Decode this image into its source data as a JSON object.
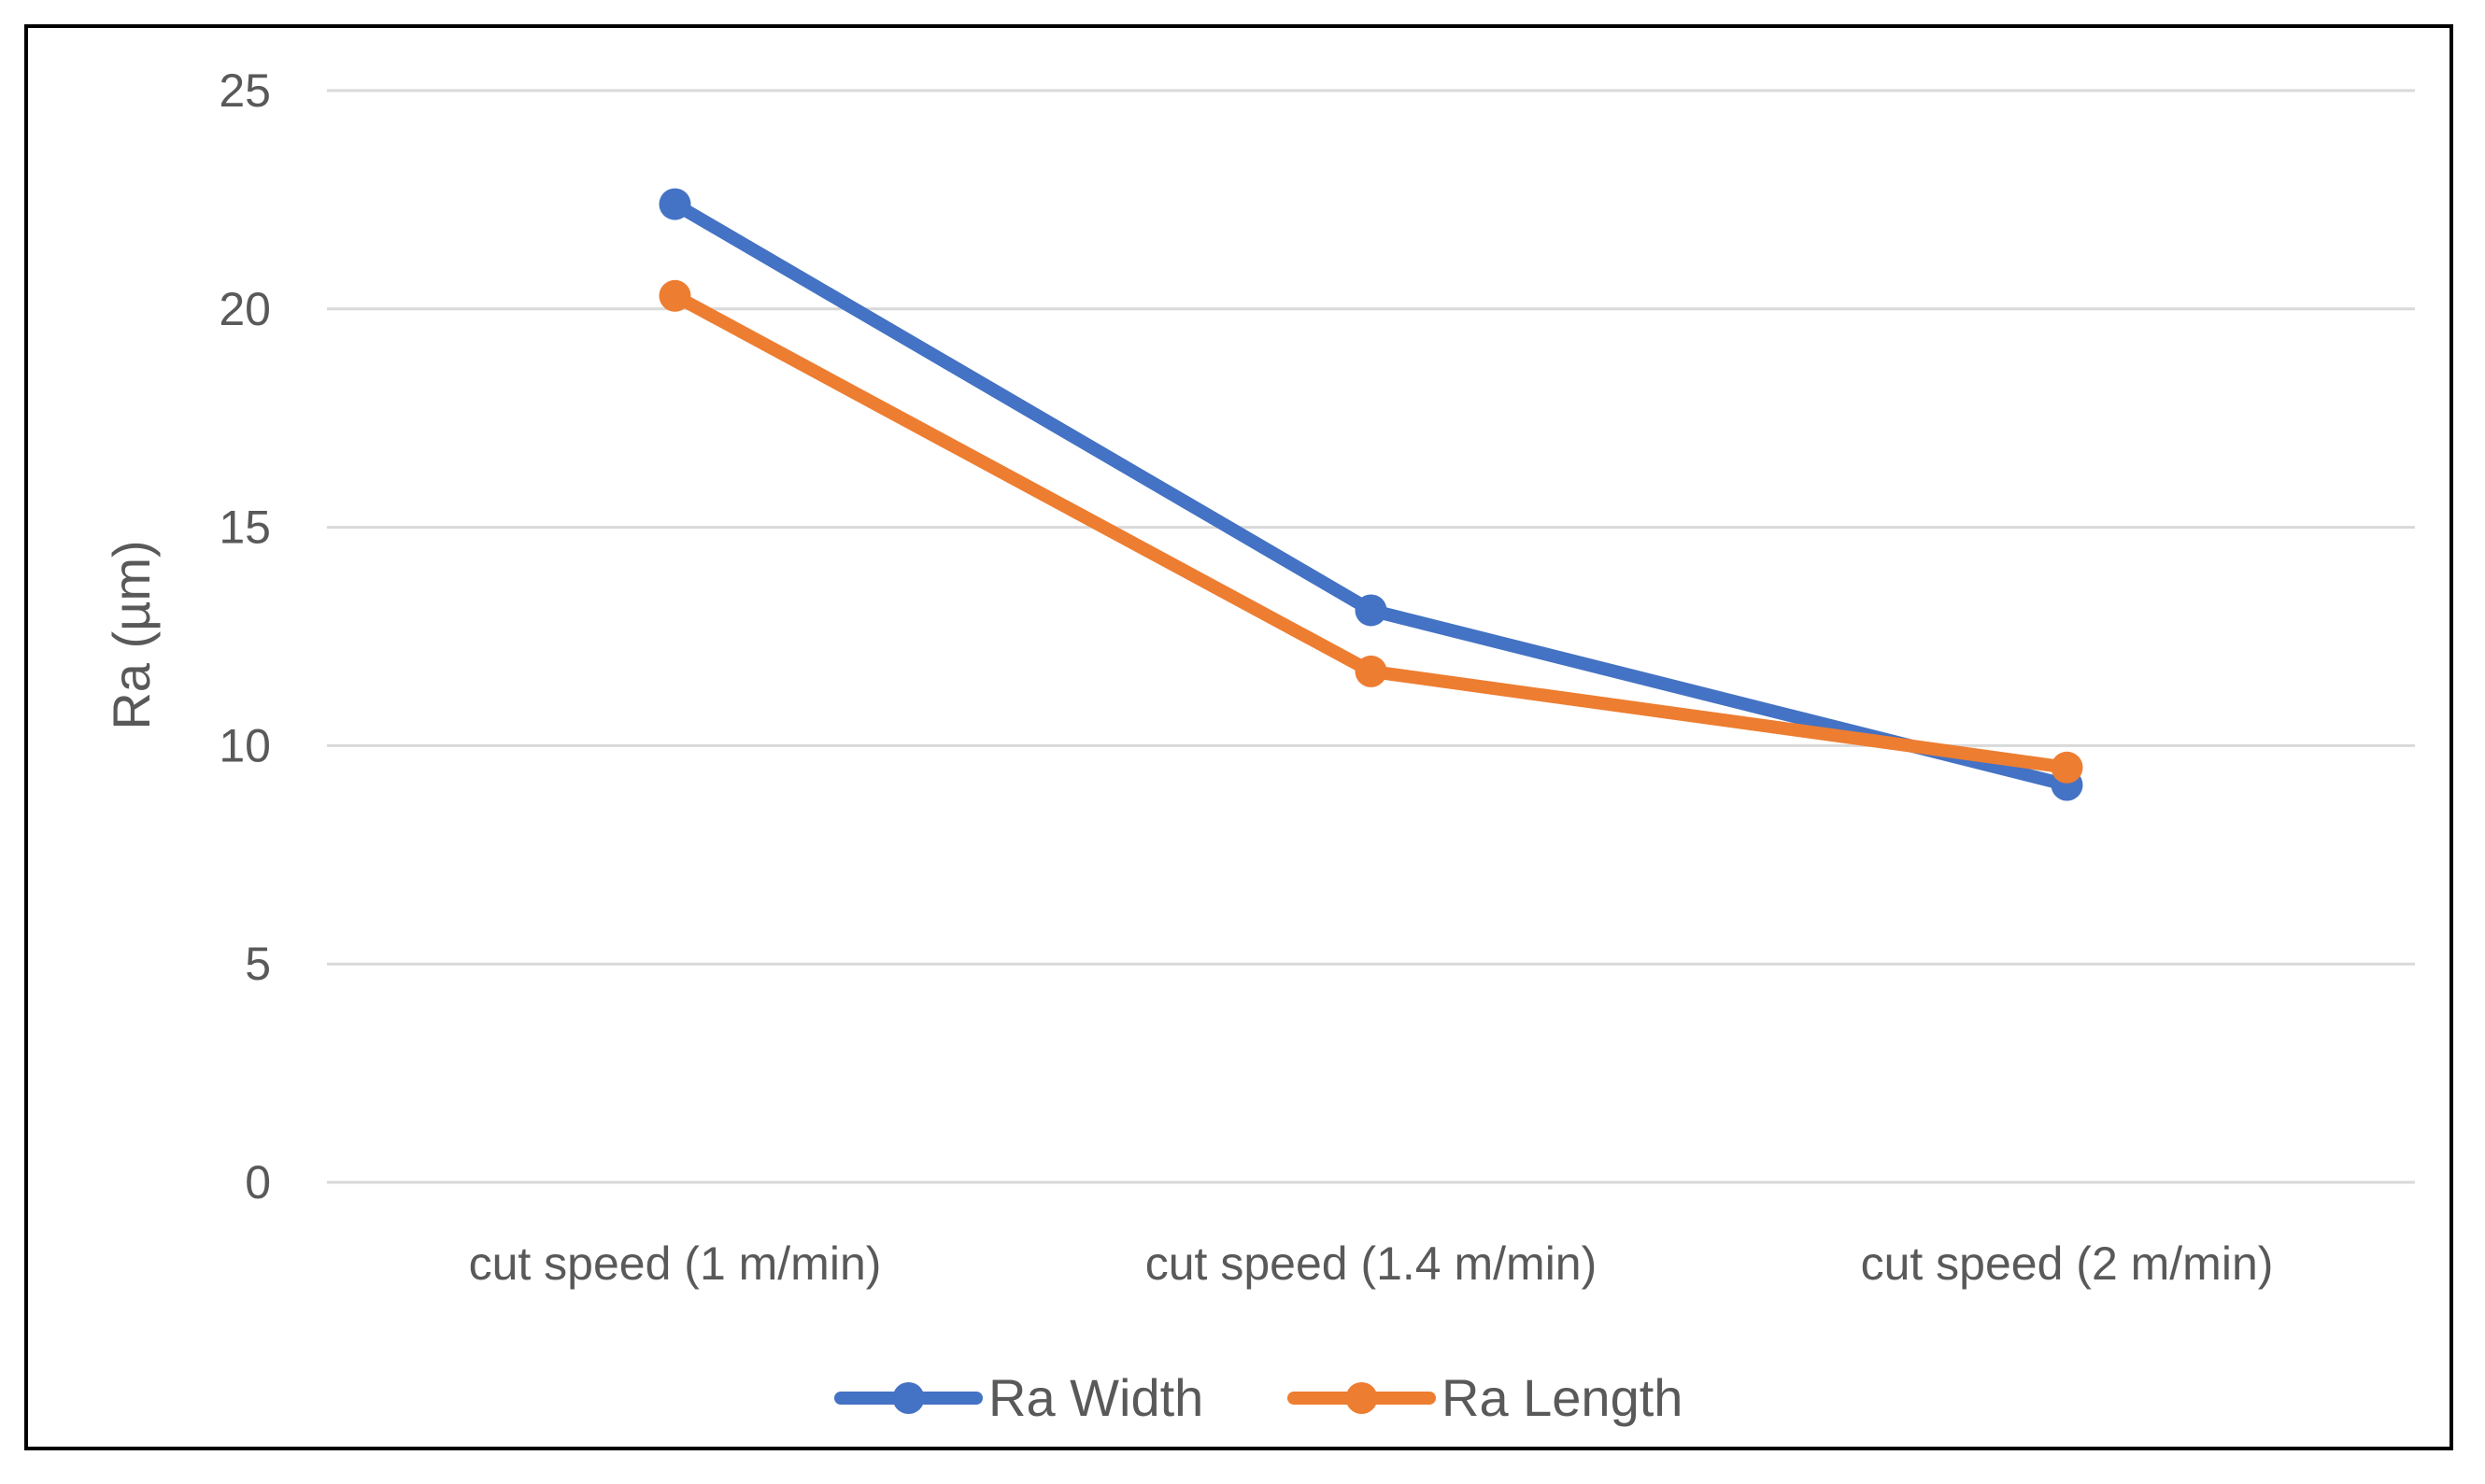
{
  "chart_data": {
    "type": "line",
    "title": "",
    "xlabel": "",
    "ylabel": "Ra (µm)",
    "ylim": [
      0,
      25
    ],
    "yticks": [
      0,
      5,
      10,
      15,
      20,
      25
    ],
    "grid": true,
    "legend_position": "bottom",
    "categories": [
      "cut speed (1 m/min)",
      "cut speed (1.4 m/min)",
      "cut speed (2 m/min)"
    ],
    "series": [
      {
        "name": "Ra Width",
        "color": "#4472C4",
        "values": [
          22.4,
          13.1,
          9.1
        ]
      },
      {
        "name": "Ra Length",
        "color": "#ED7D31",
        "values": [
          20.3,
          11.7,
          9.5
        ]
      }
    ]
  }
}
